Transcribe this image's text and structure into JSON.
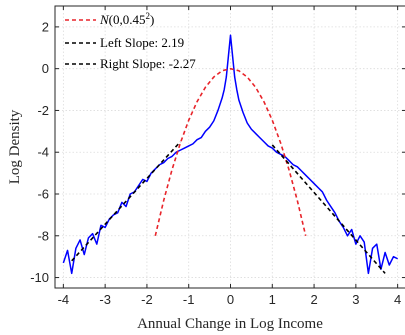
{
  "chart_data": {
    "type": "line",
    "xlabel": "Annual Change in Log Income",
    "ylabel": "Log Density",
    "xlim": [
      -4.2,
      4.2
    ],
    "ylim": [
      -10.5,
      3
    ],
    "xticks": [
      -4,
      -3,
      -2,
      -1,
      0,
      1,
      2,
      3,
      4
    ],
    "yticks": [
      -10,
      -8,
      -6,
      -4,
      -2,
      0,
      2
    ],
    "grid": true,
    "legend_position": "top-left",
    "legend": [
      {
        "label_fn": "N",
        "label_args": "(0,0.45",
        "label_sup": "2",
        "label_close": ")"
      },
      {
        "label": "Left Slope: 2.19"
      },
      {
        "label": "Right Slope: -2.27"
      }
    ],
    "series": [
      {
        "kind": "empirical",
        "color": "#0000ff",
        "style": "solid",
        "x": [
          -4.0,
          -3.9,
          -3.8,
          -3.7,
          -3.6,
          -3.5,
          -3.4,
          -3.3,
          -3.2,
          -3.1,
          -3.0,
          -2.9,
          -2.8,
          -2.7,
          -2.6,
          -2.5,
          -2.4,
          -2.3,
          -2.2,
          -2.1,
          -2.0,
          -1.9,
          -1.8,
          -1.7,
          -1.6,
          -1.5,
          -1.4,
          -1.3,
          -1.2,
          -1.1,
          -1.0,
          -0.9,
          -0.8,
          -0.7,
          -0.6,
          -0.5,
          -0.4,
          -0.3,
          -0.2,
          -0.15,
          -0.1,
          -0.05,
          0.0,
          0.05,
          0.1,
          0.15,
          0.2,
          0.3,
          0.4,
          0.5,
          0.6,
          0.7,
          0.8,
          0.9,
          1.0,
          1.1,
          1.2,
          1.3,
          1.4,
          1.5,
          1.6,
          1.7,
          1.8,
          1.9,
          2.0,
          2.1,
          2.2,
          2.3,
          2.4,
          2.5,
          2.6,
          2.7,
          2.8,
          2.9,
          3.0,
          3.1,
          3.2,
          3.3,
          3.4,
          3.5,
          3.6,
          3.7,
          3.8,
          3.9,
          4.0
        ],
        "y": [
          -9.3,
          -8.7,
          -9.8,
          -8.6,
          -8.2,
          -8.9,
          -8.1,
          -7.9,
          -8.4,
          -7.5,
          -7.6,
          -7.2,
          -7.0,
          -6.9,
          -6.4,
          -6.6,
          -6.0,
          -5.9,
          -5.6,
          -5.3,
          -5.4,
          -5.0,
          -4.8,
          -4.6,
          -4.5,
          -4.3,
          -4.2,
          -4.0,
          -3.9,
          -3.8,
          -3.7,
          -3.6,
          -3.4,
          -3.3,
          -3.0,
          -2.8,
          -2.5,
          -2.0,
          -1.4,
          -1.0,
          -0.4,
          0.6,
          1.6,
          0.6,
          -0.4,
          -1.0,
          -1.5,
          -2.1,
          -2.6,
          -2.9,
          -3.1,
          -3.3,
          -3.5,
          -3.7,
          -3.8,
          -4.0,
          -4.1,
          -4.2,
          -4.4,
          -4.6,
          -4.7,
          -4.9,
          -5.1,
          -5.3,
          -5.5,
          -5.7,
          -5.9,
          -6.3,
          -6.6,
          -6.9,
          -7.3,
          -7.6,
          -8.0,
          -7.7,
          -8.4,
          -8.0,
          -8.3,
          -9.8,
          -8.6,
          -8.4,
          -9.6,
          -8.8,
          -9.4,
          -9.0,
          -9.1
        ]
      },
      {
        "label_ref": 0,
        "color": "#e8242a",
        "style": "dashed",
        "x": [
          -1.8,
          -1.6,
          -1.4,
          -1.2,
          -1.0,
          -0.8,
          -0.6,
          -0.4,
          -0.2,
          0.0,
          0.2,
          0.4,
          0.6,
          0.8,
          1.0,
          1.2,
          1.4,
          1.6,
          1.8
        ],
        "y": [
          -8.0,
          -6.32,
          -4.84,
          -3.56,
          -2.47,
          -1.58,
          -0.89,
          -0.4,
          -0.1,
          0.0,
          -0.1,
          -0.4,
          -0.89,
          -1.58,
          -2.47,
          -3.56,
          -4.84,
          -6.32,
          -8.0
        ]
      },
      {
        "label_ref": 1,
        "color": "#000000",
        "style": "dashed",
        "x": [
          -3.8,
          -1.2
        ],
        "y": [
          -9.2,
          -3.5
        ]
      },
      {
        "label_ref": 2,
        "color": "#000000",
        "style": "dashed",
        "x": [
          1.0,
          3.7
        ],
        "y": [
          -3.65,
          -9.8
        ]
      }
    ]
  }
}
